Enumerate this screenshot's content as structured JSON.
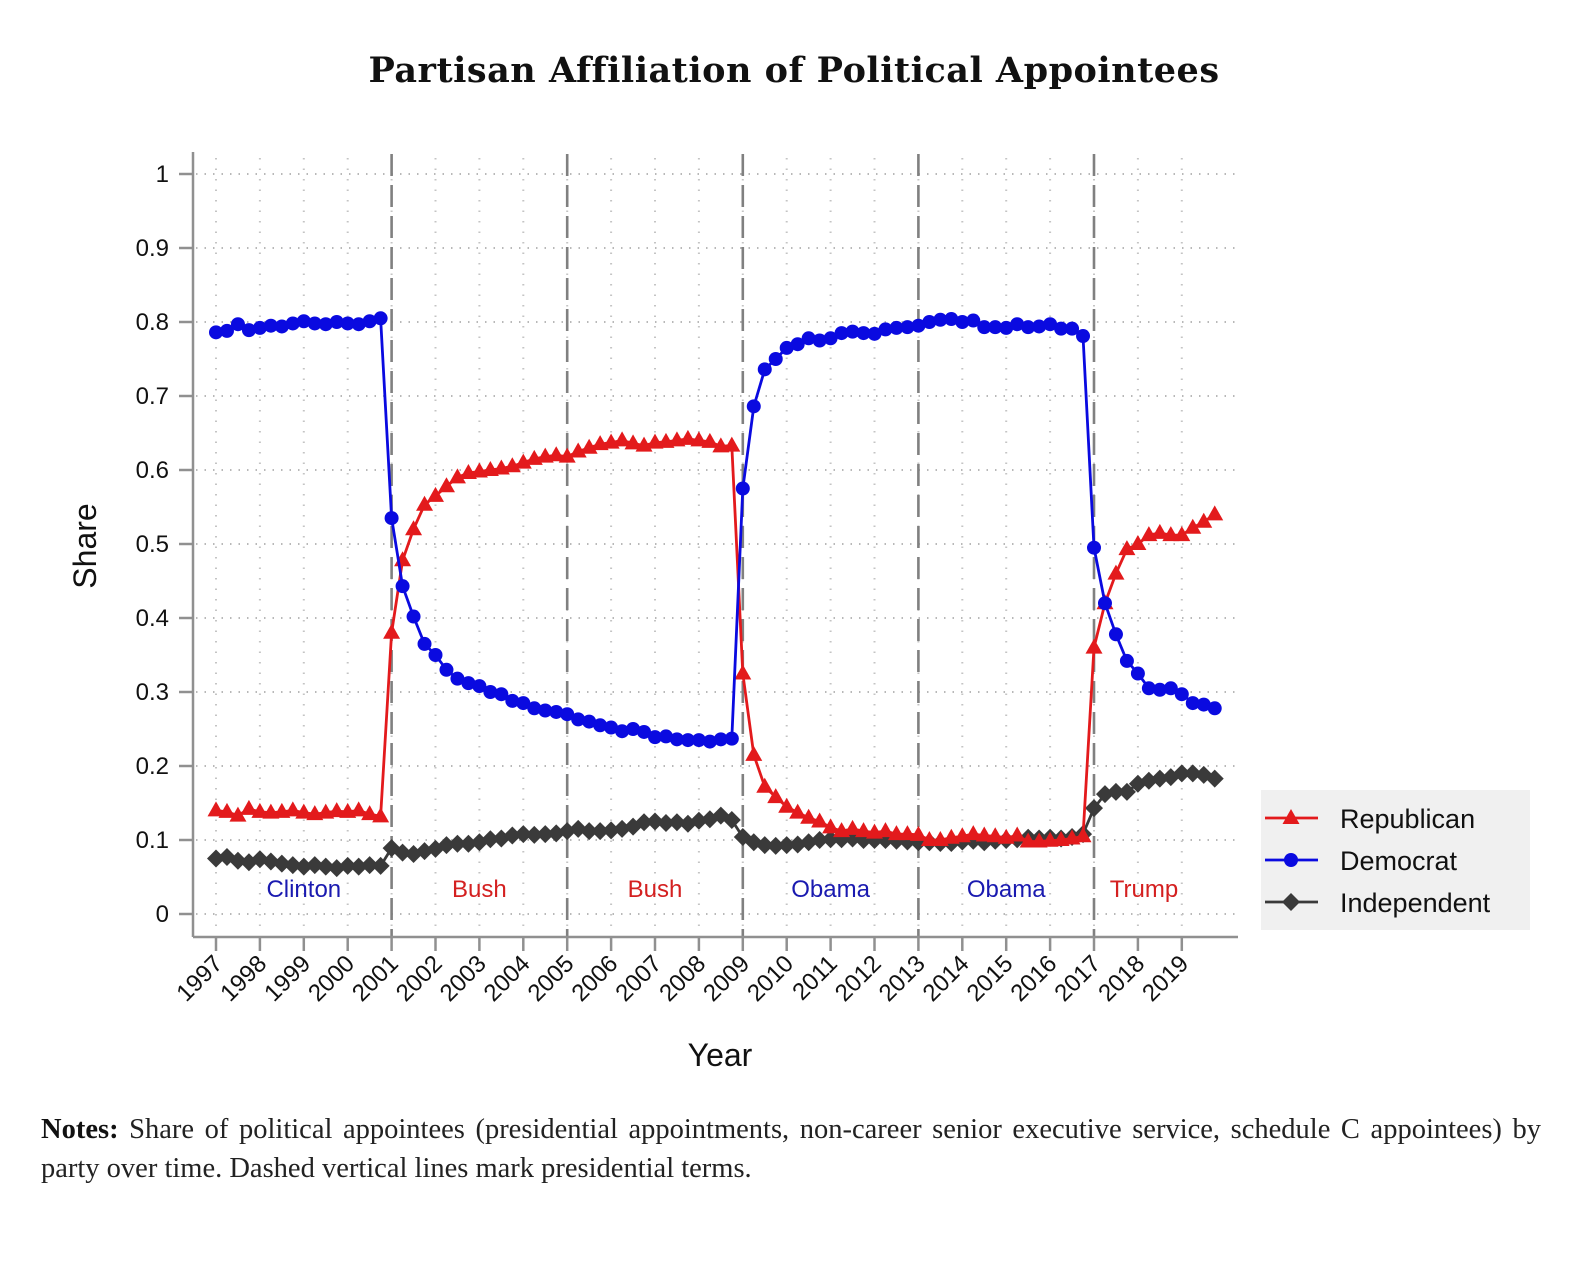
{
  "chart_data": {
    "type": "line",
    "title": "Partisan Affiliation of Political Appointees",
    "xlabel": "Year",
    "ylabel": "Share",
    "xlim": [
      1997,
      2019.75
    ],
    "ylim": [
      0,
      1
    ],
    "grid": true,
    "legend_position": "right",
    "x_ticks": [
      "1997",
      "1998",
      "1999",
      "2000",
      "2001",
      "2002",
      "2003",
      "2004",
      "2005",
      "2006",
      "2007",
      "2008",
      "2009",
      "2010",
      "2011",
      "2012",
      "2013",
      "2014",
      "2015",
      "2016",
      "2017",
      "2018",
      "2019"
    ],
    "y_ticks": [
      "0",
      "0.1",
      "0.2",
      "0.3",
      "0.4",
      "0.5",
      "0.6",
      "0.7",
      "0.8",
      "0.9",
      "1"
    ],
    "x_start": 1997,
    "frequency": "quarterly",
    "term_lines": [
      2001,
      2005,
      2009,
      2013,
      2017
    ],
    "terms": [
      {
        "label": "Clinton",
        "start": 1997,
        "end": 2001,
        "color": "#1a1ab0"
      },
      {
        "label": "Bush",
        "start": 2001,
        "end": 2005,
        "color": "#d42020"
      },
      {
        "label": "Bush",
        "start": 2005,
        "end": 2009,
        "color": "#d42020"
      },
      {
        "label": "Obama",
        "start": 2009,
        "end": 2013,
        "color": "#1a1ab0"
      },
      {
        "label": "Obama",
        "start": 2013,
        "end": 2017,
        "color": "#1a1ab0"
      },
      {
        "label": "Trump",
        "start": 2017,
        "end": 2020,
        "color": "#d42020"
      }
    ],
    "series": [
      {
        "name": "Republican",
        "color": "#e31a1c",
        "marker": "triangle",
        "values": [
          0.14,
          0.138,
          0.133,
          0.142,
          0.138,
          0.137,
          0.138,
          0.14,
          0.137,
          0.135,
          0.137,
          0.139,
          0.138,
          0.14,
          0.135,
          0.132,
          0.38,
          0.478,
          0.52,
          0.553,
          0.565,
          0.578,
          0.59,
          0.596,
          0.598,
          0.6,
          0.602,
          0.605,
          0.61,
          0.615,
          0.618,
          0.62,
          0.618,
          0.625,
          0.63,
          0.635,
          0.637,
          0.64,
          0.636,
          0.633,
          0.637,
          0.638,
          0.64,
          0.642,
          0.64,
          0.638,
          0.632,
          0.633,
          0.325,
          0.215,
          0.172,
          0.158,
          0.145,
          0.137,
          0.13,
          0.125,
          0.117,
          0.112,
          0.115,
          0.112,
          0.11,
          0.112,
          0.108,
          0.108,
          0.107,
          0.1,
          0.1,
          0.103,
          0.105,
          0.108,
          0.106,
          0.105,
          0.103,
          0.106,
          0.098,
          0.098,
          0.099,
          0.1,
          0.102,
          0.105,
          0.36,
          0.42,
          0.46,
          0.493,
          0.5,
          0.512,
          0.515,
          0.512,
          0.512,
          0.522,
          0.53,
          0.54
        ]
      },
      {
        "name": "Democrat",
        "color": "#0a0ae0",
        "marker": "circle",
        "values": [
          0.786,
          0.788,
          0.797,
          0.789,
          0.792,
          0.795,
          0.794,
          0.798,
          0.801,
          0.798,
          0.797,
          0.8,
          0.798,
          0.797,
          0.801,
          0.805,
          0.535,
          0.443,
          0.402,
          0.365,
          0.35,
          0.33,
          0.318,
          0.312,
          0.308,
          0.3,
          0.297,
          0.288,
          0.285,
          0.278,
          0.275,
          0.273,
          0.27,
          0.263,
          0.26,
          0.255,
          0.252,
          0.247,
          0.25,
          0.246,
          0.239,
          0.24,
          0.236,
          0.235,
          0.235,
          0.233,
          0.236,
          0.237,
          0.575,
          0.686,
          0.736,
          0.75,
          0.765,
          0.77,
          0.778,
          0.775,
          0.778,
          0.785,
          0.787,
          0.785,
          0.784,
          0.79,
          0.792,
          0.793,
          0.795,
          0.8,
          0.803,
          0.804,
          0.8,
          0.802,
          0.793,
          0.793,
          0.792,
          0.797,
          0.793,
          0.794,
          0.797,
          0.791,
          0.791,
          0.781,
          0.495,
          0.42,
          0.378,
          0.342,
          0.325,
          0.305,
          0.303,
          0.305,
          0.297,
          0.285,
          0.283,
          0.278
        ]
      },
      {
        "name": "Independent",
        "color": "#3a3a3a",
        "marker": "diamond",
        "values": [
          0.075,
          0.077,
          0.072,
          0.07,
          0.074,
          0.071,
          0.068,
          0.066,
          0.064,
          0.066,
          0.064,
          0.062,
          0.065,
          0.064,
          0.066,
          0.065,
          0.089,
          0.083,
          0.081,
          0.085,
          0.088,
          0.093,
          0.095,
          0.095,
          0.097,
          0.101,
          0.102,
          0.106,
          0.108,
          0.107,
          0.108,
          0.109,
          0.112,
          0.115,
          0.112,
          0.112,
          0.113,
          0.115,
          0.118,
          0.124,
          0.125,
          0.123,
          0.124,
          0.122,
          0.126,
          0.128,
          0.133,
          0.127,
          0.104,
          0.097,
          0.093,
          0.092,
          0.093,
          0.094,
          0.097,
          0.1,
          0.101,
          0.101,
          0.102,
          0.1,
          0.1,
          0.1,
          0.099,
          0.098,
          0.097,
          0.097,
          0.096,
          0.096,
          0.098,
          0.099,
          0.097,
          0.099,
          0.1,
          0.101,
          0.103,
          0.102,
          0.103,
          0.102,
          0.104,
          0.108,
          0.143,
          0.162,
          0.165,
          0.165,
          0.176,
          0.18,
          0.183,
          0.185,
          0.19,
          0.19,
          0.188,
          0.183
        ]
      }
    ]
  },
  "notes": {
    "label": "Notes:",
    "text": "Share of political appointees (presidential appointments, non-career senior executive service, schedule C appointees) by party over time. Dashed vertical lines mark presidential terms."
  }
}
